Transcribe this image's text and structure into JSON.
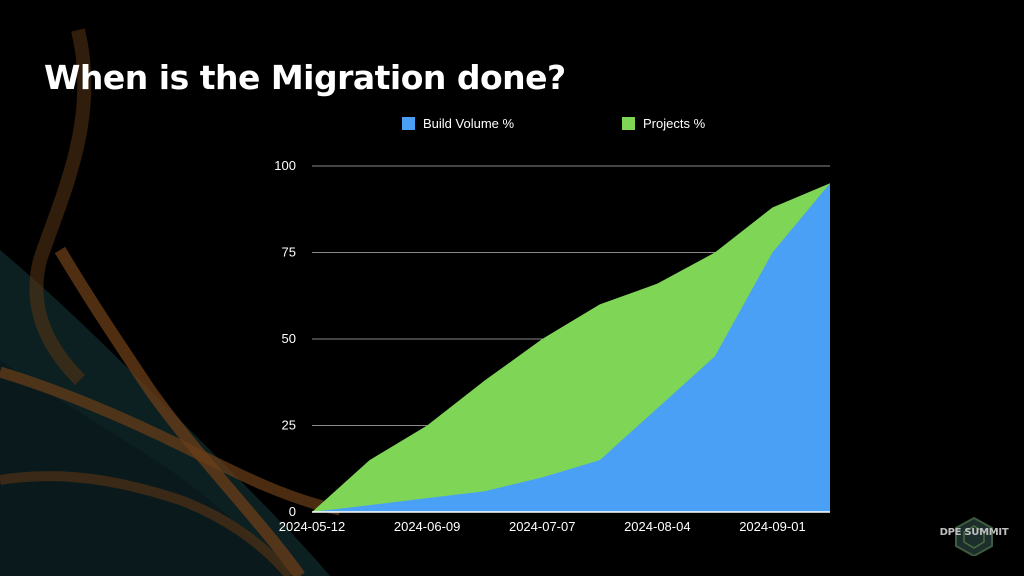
{
  "slide": {
    "title": "When is the Migration done?",
    "logo_text": "DPE SUMMIT"
  },
  "colors": {
    "background": "#000000",
    "build_volume": "#4aa0f5",
    "projects": "#7fd656",
    "gridline": "#8a8a8a",
    "decor_brown": "#6b3e18",
    "decor_teal": "#0f2426"
  },
  "chart_data": {
    "type": "area",
    "title": "",
    "xlabel": "",
    "ylabel": "",
    "x_tick_labels": [
      "2024-05-12",
      "2024-06-09",
      "2024-07-07",
      "2024-08-04",
      "2024-09-01"
    ],
    "x": [
      "2024-05-12",
      "2024-05-26",
      "2024-06-09",
      "2024-06-23",
      "2024-07-07",
      "2024-07-21",
      "2024-08-04",
      "2024-08-18",
      "2024-09-01",
      "2024-09-15"
    ],
    "ylim": [
      0,
      100
    ],
    "y_ticks": [
      0,
      25,
      50,
      75,
      100
    ],
    "grid": true,
    "legend_position": "top",
    "stacked": false,
    "series": [
      {
        "name": "Projects %",
        "color": "#7fd656",
        "values": [
          0,
          15,
          25,
          38,
          50,
          60,
          66,
          75,
          88,
          95
        ]
      },
      {
        "name": "Build Volume %",
        "color": "#4aa0f5",
        "values": [
          0,
          2,
          4,
          6,
          10,
          15,
          30,
          45,
          75,
          95
        ]
      }
    ],
    "legend": [
      "Build Volume %",
      "Projects %"
    ]
  }
}
